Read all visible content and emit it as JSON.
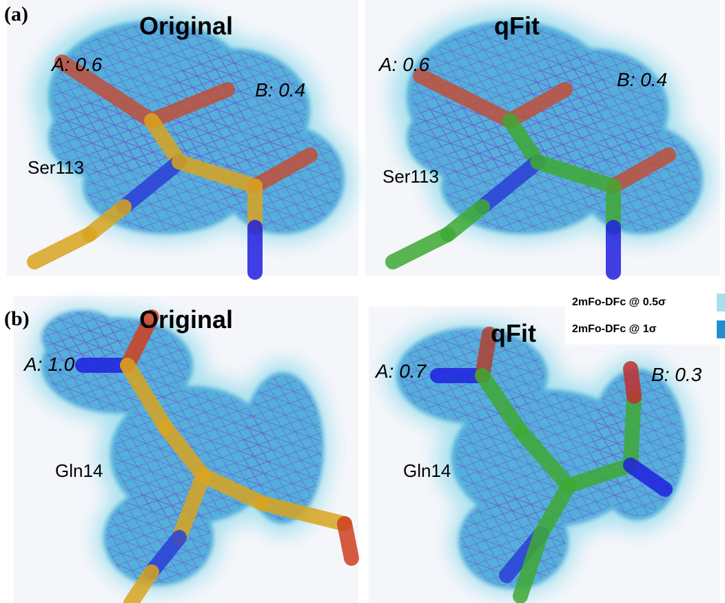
{
  "panels": [
    {
      "label": "(a)",
      "views": [
        {
          "title": "Original",
          "residue": "Ser113",
          "occupancies": [
            "A: 0.6",
            "B: 0.4"
          ]
        },
        {
          "title": "qFit",
          "residue": "Ser113",
          "occupancies": [
            "A: 0.6",
            "B: 0.4"
          ]
        }
      ]
    },
    {
      "label": "(b)",
      "views": [
        {
          "title": "Original",
          "residue": "Gln14",
          "occupancies": [
            "A: 1.0"
          ]
        },
        {
          "title": "qFit",
          "residue": "Gln14",
          "occupancies": [
            "A: 0.7",
            "B: 0.3"
          ]
        }
      ]
    }
  ],
  "legend": [
    {
      "label": "2mFo-DFc @ 0.5σ",
      "color": "#a6e0ee"
    },
    {
      "label": "2mFo-DFc @ 1σ",
      "color": "#1f8fcf"
    }
  ]
}
